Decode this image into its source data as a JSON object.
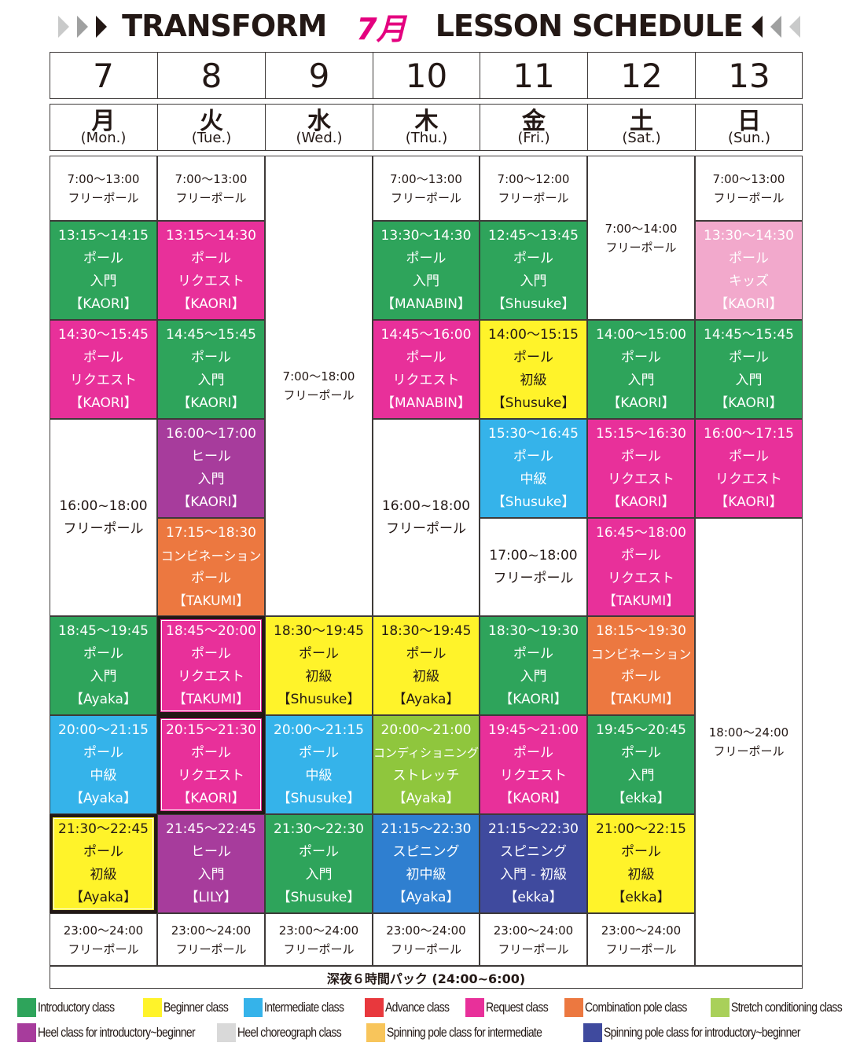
{
  "header": {
    "brand": "TRANSFORM",
    "month": "7月",
    "subtitle": "LESSON SCHEDULE",
    "arrow_color_dark": "#231815",
    "arrow_color_light": "#c9caca"
  },
  "days": [
    {
      "date": "7",
      "kanji": "月",
      "eng": "(Mon.)"
    },
    {
      "date": "8",
      "kanji": "火",
      "eng": "(Tue.)"
    },
    {
      "date": "9",
      "kanji": "水",
      "eng": "(Wed.)"
    },
    {
      "date": "10",
      "kanji": "木",
      "eng": "(Thu.)"
    },
    {
      "date": "11",
      "kanji": "金",
      "eng": "(Fri.)"
    },
    {
      "date": "12",
      "kanji": "土",
      "eng": "(Sat.)"
    },
    {
      "date": "13",
      "kanji": "日",
      "eng": "(Sun.)"
    }
  ],
  "schedule": {
    "mon": [
      {
        "time": "7:00〜13:00",
        "name": "フリーポール"
      },
      {
        "time": "13:15〜14:15",
        "cat": "ポール",
        "level": "入門",
        "teacher": "【KAORI】"
      },
      {
        "time": "14:30〜15:45",
        "cat": "ポール",
        "level": "リクエスト",
        "teacher": "【KAORI】"
      },
      {
        "time": "16:00~18:00",
        "name": "フリーポール"
      },
      {
        "time": "18:45〜19:45",
        "cat": "ポール",
        "level": "入門",
        "teacher": "【Ayaka】"
      },
      {
        "time": "20:00〜21:15",
        "cat": "ポール",
        "level": "中級",
        "teacher": "【Ayaka】"
      },
      {
        "time": "21:30〜22:45",
        "cat": "ポール",
        "level": "初級",
        "teacher": "【Ayaka】"
      },
      {
        "time": "23:00〜24:00",
        "name": "フリーポール"
      }
    ],
    "tue": [
      {
        "time": "7:00〜13:00",
        "name": "フリーポール"
      },
      {
        "time": "13:15〜14:30",
        "cat": "ポール",
        "level": "リクエスト",
        "teacher": "【KAORI】"
      },
      {
        "time": "14:45〜15:45",
        "cat": "ポール",
        "level": "入門",
        "teacher": "【KAORI】"
      },
      {
        "time": "16:00〜17:00",
        "cat": "ヒール",
        "level": "入門",
        "teacher": "【KAORI】"
      },
      {
        "time": "17:15〜18:30",
        "cat": "コンビネーション",
        "level": "ポール",
        "teacher": "【TAKUMI】"
      },
      {
        "time": "18:45〜20:00",
        "cat": "ポール",
        "level": "リクエスト",
        "teacher": "【TAKUMI】"
      },
      {
        "time": "20:15〜21:30",
        "cat": "ポール",
        "level": "リクエスト",
        "teacher": "【KAORI】"
      },
      {
        "time": "21:45〜22:45",
        "cat": "ヒール",
        "level": "入門",
        "teacher": "【LILY】"
      },
      {
        "time": "23:00〜24:00",
        "name": "フリーポール"
      }
    ],
    "wed": [
      {
        "time": "7:00〜18:00",
        "name": "フリーポール"
      },
      {
        "time": "18:30〜19:45",
        "cat": "ポール",
        "level": "初級",
        "teacher": "【Shusuke】"
      },
      {
        "time": "20:00〜21:15",
        "cat": "ポール",
        "level": "中級",
        "teacher": "【Shusuke】"
      },
      {
        "time": "21:30〜22:30",
        "cat": "ポール",
        "level": "入門",
        "teacher": "【Shusuke】"
      },
      {
        "time": "23:00〜24:00",
        "name": "フリーポール"
      }
    ],
    "thu": [
      {
        "time": "7:00〜13:00",
        "name": "フリーポール"
      },
      {
        "time": "13:30〜14:30",
        "cat": "ポール",
        "level": "入門",
        "teacher": "【MANABIN】"
      },
      {
        "time": "14:45〜16:00",
        "cat": "ポール",
        "level": "リクエスト",
        "teacher": "【MANABIN】"
      },
      {
        "time": "16:00~18:00",
        "name": "フリーポール"
      },
      {
        "time": "18:30〜19:45",
        "cat": "ポール",
        "level": "初級",
        "teacher": "【Ayaka】"
      },
      {
        "time": "20:00〜21:00",
        "cat": "コンディショニング",
        "level": "ストレッチ",
        "teacher": "【Ayaka】"
      },
      {
        "time": "21:15〜22:30",
        "cat": "スピニング",
        "level": "初中級",
        "teacher": "【Ayaka】"
      },
      {
        "time": "23:00〜24:00",
        "name": "フリーポール"
      }
    ],
    "fri": [
      {
        "time": "7:00〜12:00",
        "name": "フリーポール"
      },
      {
        "time": "12:45〜13:45",
        "cat": "ポール",
        "level": "入門",
        "teacher": "【Shusuke】"
      },
      {
        "time": "14:00〜15:15",
        "cat": "ポール",
        "level": "初級",
        "teacher": "【Shusuke】"
      },
      {
        "time": "15:30〜16:45",
        "cat": "ポール",
        "level": "中級",
        "teacher": "【Shusuke】"
      },
      {
        "time": "17:00~18:00",
        "name": "フリーポール"
      },
      {
        "time": "18:30〜19:30",
        "cat": "ポール",
        "level": "入門",
        "teacher": "【KAORI】"
      },
      {
        "time": "19:45〜21:00",
        "cat": "ポール",
        "level": "リクエスト",
        "teacher": "【KAORI】"
      },
      {
        "time": "21:15〜22:30",
        "cat": "スピニング",
        "level": "入門 - 初級",
        "teacher": "【ekka】"
      },
      {
        "time": "23:00〜24:00",
        "name": "フリーポール"
      }
    ],
    "sat": [
      {
        "time": "7:00〜14:00",
        "name": "フリーポール"
      },
      {
        "time": "14:00〜15:00",
        "cat": "ポール",
        "level": "入門",
        "teacher": "【KAORI】"
      },
      {
        "time": "15:15〜16:30",
        "cat": "ポール",
        "level": "リクエスト",
        "teacher": "【KAORI】"
      },
      {
        "time": "16:45〜18:00",
        "cat": "ポール",
        "level": "リクエスト",
        "teacher": "【TAKUMI】"
      },
      {
        "time": "18:15〜19:30",
        "cat": "コンビネーション",
        "level": "ポール",
        "teacher": "【TAKUMI】"
      },
      {
        "time": "19:45〜20:45",
        "cat": "ポール",
        "level": "入門",
        "teacher": "【ekka】"
      },
      {
        "time": "21:00〜22:15",
        "cat": "ポール",
        "level": "初級",
        "teacher": "【ekka】"
      },
      {
        "time": "23:00〜24:00",
        "name": "フリーポール"
      }
    ],
    "sun": [
      {
        "time": "7:00〜13:00",
        "name": "フリーポール"
      },
      {
        "time": "13:30〜14:30",
        "cat": "ポール",
        "level": "キッズ",
        "teacher": "【KAORI】"
      },
      {
        "time": "14:45〜15:45",
        "cat": "ポール",
        "level": "入門",
        "teacher": "【KAORI】"
      },
      {
        "time": "16:00〜17:15",
        "cat": "ポール",
        "level": "リクエスト",
        "teacher": "【KAORI】"
      },
      {
        "time": "18:00〜24:00",
        "name": "フリーポール"
      }
    ]
  },
  "late_night_pack": "深夜６時間パック (24:00~6:00)",
  "legend": [
    {
      "label": "Introductory class",
      "color": "#2ea45b"
    },
    {
      "label": "Beginner class",
      "color": "#fff32a"
    },
    {
      "label": "Intermediate class",
      "color": "#35b3ea"
    },
    {
      "label": "Advance class",
      "color": "#e8383d"
    },
    {
      "label": "Request class",
      "color": "#e8309a"
    },
    {
      "label": "Combination pole class",
      "color": "#ec7840"
    },
    {
      "label": "Stretch conditioning class",
      "color": "#a9d05a"
    },
    {
      "label": "Heel class for introductory~beginner",
      "color": "#a73c9c"
    },
    {
      "label": "Heel choreograph class",
      "color": "#d9d9d9"
    },
    {
      "label": "Spinning pole class for intermediate",
      "color": "#f8c55b"
    },
    {
      "label": "Spinning pole class for introductory~beginner",
      "color": "#3f4a9e"
    }
  ]
}
